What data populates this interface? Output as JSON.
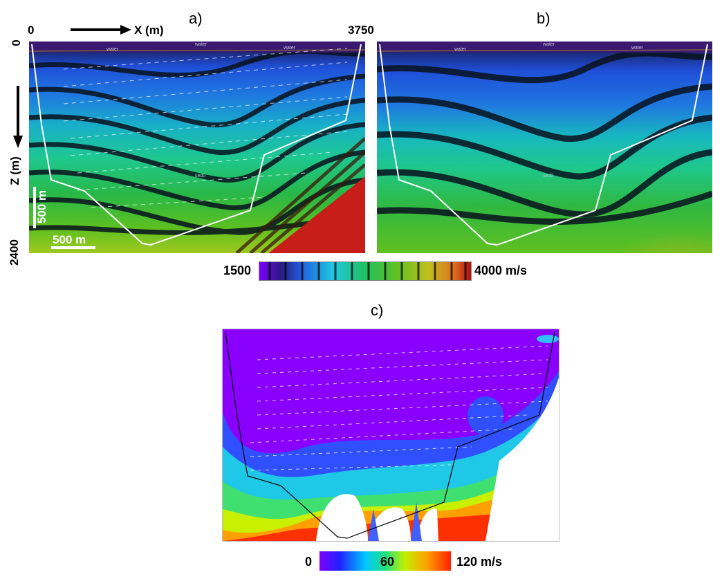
{
  "panels": {
    "a": {
      "label": "a)"
    },
    "b": {
      "label": "b)"
    },
    "c": {
      "label": "c)"
    }
  },
  "axes": {
    "x_label": "X (m)",
    "x_start": "0",
    "x_end": "3750",
    "z_label": "Z (m)",
    "z_start": "0",
    "z_end": "2400",
    "scale_h": "500 m",
    "scale_v": "500 m"
  },
  "model_labels": {
    "water": "water",
    "sed": "sed0"
  },
  "velocity_colorbar": {
    "min_label": "1500",
    "max_label": "4000 m/s",
    "colors": [
      "#7a00ff",
      "#1a1a60",
      "#1f5fe0",
      "#101830",
      "#20c8e0",
      "#0d2a2a",
      "#20c060",
      "#102a10",
      "#60c020",
      "#1a3010",
      "#c0c020",
      "#302a10",
      "#e07020",
      "#200808"
    ]
  },
  "difference_colorbar": {
    "min_label": "0",
    "mid_label": "60",
    "max_label": "120 m/s",
    "colors": [
      "#8000ff",
      "#2020ff",
      "#00c0ff",
      "#20e080",
      "#c0f000",
      "#ffa000",
      "#ff2000"
    ]
  }
}
